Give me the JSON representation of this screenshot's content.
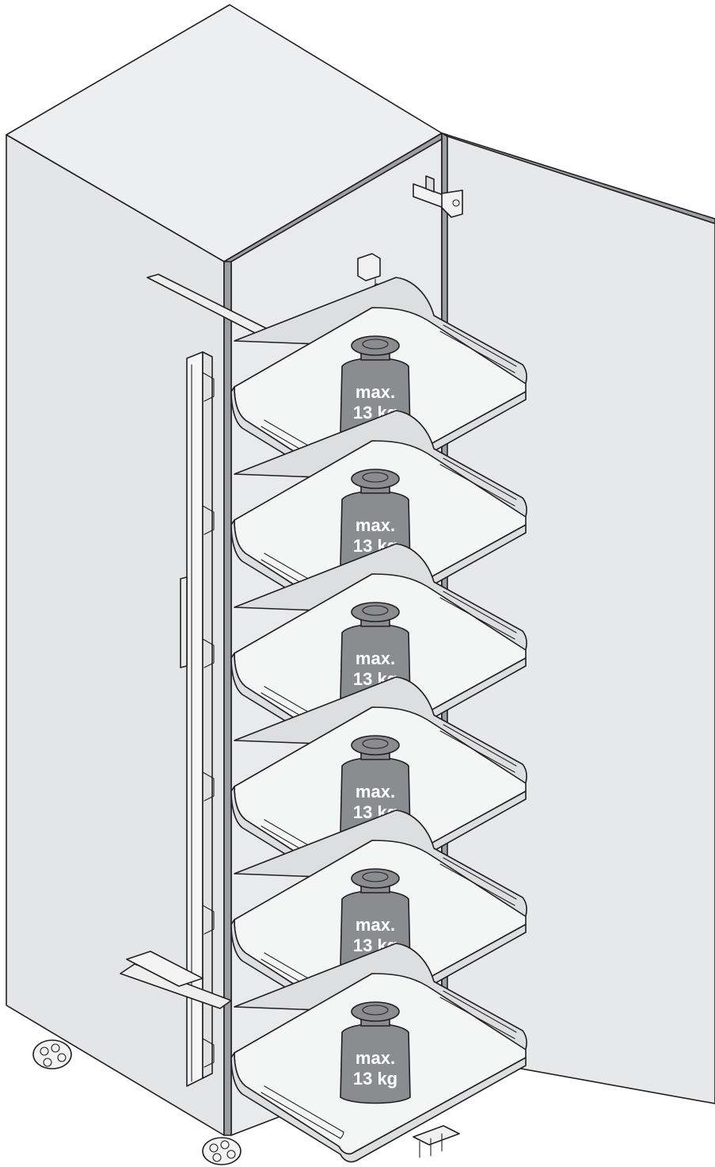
{
  "illustration": {
    "shelf_count": 6,
    "colors": {
      "cabinet_top": "#eceeef",
      "cabinet_side": "#e3e5e6",
      "cabinet_inside": "#e8eaeb",
      "door": "#e6e8e9",
      "edge_band": "#9d9fa2",
      "shelf_face": "#f4f5f5",
      "shelf_lip": "#dcdedf",
      "weight_fill": "#8a8c8f",
      "line": "#231f20"
    }
  },
  "shelves": [
    {
      "id": 1,
      "weight_label_line1": "max.",
      "weight_label_line2": "13 kg"
    },
    {
      "id": 2,
      "weight_label_line1": "max.",
      "weight_label_line2": "13 kg"
    },
    {
      "id": 3,
      "weight_label_line1": "max.",
      "weight_label_line2": "13 kg"
    },
    {
      "id": 4,
      "weight_label_line1": "max.",
      "weight_label_line2": "13 kg"
    },
    {
      "id": 5,
      "weight_label_line1": "max.",
      "weight_label_line2": "13 kg"
    },
    {
      "id": 6,
      "weight_label_line1": "max.",
      "weight_label_line2": "13 kg"
    }
  ]
}
